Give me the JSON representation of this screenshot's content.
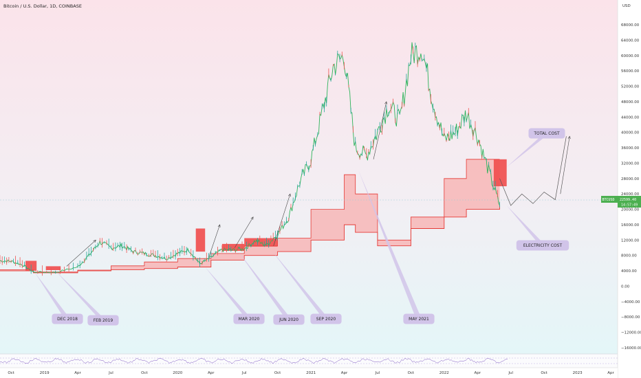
{
  "header": {
    "title": "Bitcoin / U.S. Dollar, 1D, COINBASE"
  },
  "price_tag": {
    "symbol": "BTCUSD",
    "price": "22599.40",
    "timer": "14:57:49"
  },
  "colors": {
    "candle_up": "#26a69a",
    "candle_down": "#ef5350",
    "line_green": "#2db35a",
    "band_fill": "#f7b6b6",
    "band_line": "#e53935",
    "callout_fill": "#d1c4e9",
    "price_tag": "#4caf50",
    "bg_top": "#fbe4ea",
    "bg_bottom": "#e6f6f8"
  },
  "chart_data": {
    "type": "line",
    "title": "Bitcoin / U.S. Dollar, 1D, COINBASE",
    "xlabel": "",
    "ylabel": "",
    "y_unit": "USD",
    "ylim": [
      -18000,
      72000
    ],
    "yticks": [
      "68000.00",
      "64000.00",
      "60000.00",
      "56000.00",
      "52000.00",
      "48000.00",
      "44000.00",
      "40000.00",
      "36000.00",
      "32000.00",
      "28000.00",
      "24000.00",
      "20000.00",
      "16000.00",
      "12000.00",
      "8000.00",
      "4000.00",
      "0.00",
      "−4000.00",
      "−8000.00",
      "−12000.00",
      "−16000.00"
    ],
    "xticks": [
      "Oct",
      "2019",
      "Apr",
      "Jul",
      "Oct",
      "2020",
      "Apr",
      "Jul",
      "Oct",
      "2021",
      "Apr",
      "Jul",
      "Oct",
      "2022",
      "Apr",
      "Jul",
      "Oct",
      "2023",
      "Apr"
    ],
    "grid": false,
    "series": [
      {
        "name": "BTCUSD",
        "x": [
          "2018-09",
          "2018-10",
          "2018-11",
          "2018-12",
          "2019-02",
          "2019-04",
          "2019-05",
          "2019-06",
          "2019-07",
          "2019-08",
          "2019-09",
          "2019-10",
          "2019-11",
          "2019-12",
          "2020-01",
          "2020-02",
          "2020-03",
          "2020-04",
          "2020-05",
          "2020-06",
          "2020-07",
          "2020-08",
          "2020-09",
          "2020-10",
          "2020-11",
          "2020-12",
          "2021-01",
          "2021-02",
          "2021-03",
          "2021-04",
          "2021-05",
          "2021-06",
          "2021-07",
          "2021-08",
          "2021-09",
          "2021-10",
          "2021-11",
          "2021-12",
          "2022-01",
          "2022-02",
          "2022-03",
          "2022-04",
          "2022-05",
          "2022-06"
        ],
        "values": [
          6600,
          6500,
          5600,
          3700,
          3600,
          5000,
          8000,
          11500,
          10000,
          10500,
          9000,
          8500,
          8000,
          7200,
          8500,
          9500,
          5800,
          7500,
          9500,
          9400,
          9800,
          11800,
          10700,
          13500,
          18000,
          27000,
          33000,
          45000,
          57000,
          60000,
          36000,
          34000,
          40000,
          47000,
          43000,
          60000,
          62000,
          48000,
          38000,
          40000,
          45000,
          39000,
          30000,
          21000
        ]
      },
      {
        "name": "TOTAL COST",
        "x": [
          "2018-09",
          "2018-12",
          "2019-04",
          "2019-07",
          "2019-10",
          "2020-01",
          "2020-04",
          "2020-07",
          "2020-10",
          "2021-01",
          "2021-04",
          "2021-05",
          "2021-07",
          "2021-10",
          "2022-01",
          "2022-03",
          "2022-06"
        ],
        "values": [
          4300,
          3700,
          4200,
          5300,
          6300,
          7200,
          8500,
          10500,
          12500,
          20000,
          29000,
          24000,
          12000,
          18000,
          28000,
          33000,
          33000
        ]
      },
      {
        "name": "ELECTRICITY COST",
        "x": [
          "2018-09",
          "2018-12",
          "2019-04",
          "2019-07",
          "2019-10",
          "2020-01",
          "2020-04",
          "2020-07",
          "2020-10",
          "2021-01",
          "2021-04",
          "2021-05",
          "2021-07",
          "2021-10",
          "2022-01",
          "2022-03",
          "2022-06"
        ],
        "values": [
          4000,
          3500,
          4000,
          4300,
          4600,
          5000,
          6800,
          8000,
          9000,
          12000,
          16000,
          14000,
          10500,
          15000,
          18000,
          20000,
          21000
        ]
      },
      {
        "name": "projection",
        "x": [
          "2022-06",
          "2022-07",
          "2022-08",
          "2022-09",
          "2022-10",
          "2022-11",
          "2022-12"
        ],
        "values": [
          28000,
          21000,
          24000,
          21500,
          24500,
          22500,
          39000
        ]
      }
    ],
    "annotations": [
      {
        "label": "DEC 2018",
        "date": "2018-12"
      },
      {
        "label": "FEB 2019",
        "date": "2019-02"
      },
      {
        "label": "MAR 2020",
        "date": "2020-03"
      },
      {
        "label": "JUN 2020",
        "date": "2020-06"
      },
      {
        "label": "SEP 2020",
        "date": "2020-09"
      },
      {
        "label": "MAY 2021",
        "date": "2021-05"
      },
      {
        "label": "TOTAL COST",
        "date": "2022-06"
      },
      {
        "label": "ELECTRICITY COST",
        "date": "2022-06"
      }
    ],
    "current_price": 22599.4
  }
}
